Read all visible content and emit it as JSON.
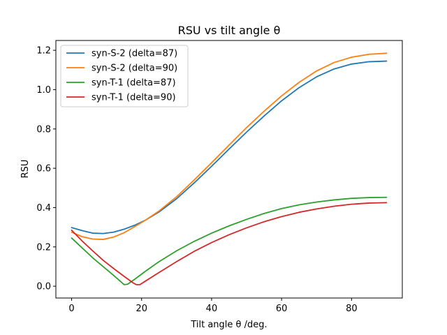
{
  "chart_data": {
    "type": "line",
    "title": "RSU vs tilt angle θ",
    "xlabel": "Tilt angle θ /deg.",
    "ylabel": "RSU",
    "xlim": [
      -4.5,
      94.5
    ],
    "ylim": [
      -0.06,
      1.25
    ],
    "xticks": [
      0,
      20,
      40,
      60,
      80
    ],
    "yticks": [
      0.0,
      0.2,
      0.4,
      0.6,
      0.8,
      1.0,
      1.2
    ],
    "grid": false,
    "legend_position": "top-left",
    "series": [
      {
        "name": "syn-S-2 (delta=87)",
        "color": "#1f77b4",
        "x": [
          0,
          3,
          6,
          9,
          12,
          15,
          18,
          21,
          25,
          30,
          35,
          40,
          45,
          50,
          55,
          60,
          65,
          70,
          75,
          80,
          85,
          90
        ],
        "y": [
          0.298,
          0.283,
          0.27,
          0.268,
          0.275,
          0.29,
          0.31,
          0.335,
          0.378,
          0.445,
          0.525,
          0.61,
          0.698,
          0.784,
          0.866,
          0.943,
          1.01,
          1.065,
          1.105,
          1.13,
          1.142,
          1.145
        ]
      },
      {
        "name": "syn-S-2 (delta=90)",
        "color": "#ff7f0e",
        "x": [
          0,
          3,
          6,
          9,
          12,
          15,
          18,
          21,
          25,
          30,
          35,
          40,
          45,
          50,
          55,
          60,
          65,
          70,
          75,
          80,
          85,
          90
        ],
        "y": [
          0.275,
          0.252,
          0.24,
          0.238,
          0.25,
          0.272,
          0.303,
          0.335,
          0.383,
          0.455,
          0.54,
          0.628,
          0.718,
          0.807,
          0.89,
          0.968,
          1.037,
          1.095,
          1.138,
          1.165,
          1.18,
          1.185
        ]
      },
      {
        "name": "syn-T-1 (delta=87)",
        "color": "#2ca02c",
        "x": [
          0,
          3,
          6,
          9,
          12,
          15,
          16,
          18,
          21,
          25,
          30,
          35,
          40,
          45,
          50,
          55,
          60,
          65,
          70,
          75,
          80,
          85,
          90
        ],
        "y": [
          0.245,
          0.195,
          0.145,
          0.1,
          0.055,
          0.008,
          0.01,
          0.035,
          0.075,
          0.125,
          0.18,
          0.228,
          0.27,
          0.307,
          0.34,
          0.37,
          0.395,
          0.414,
          0.428,
          0.439,
          0.447,
          0.451,
          0.452
        ]
      },
      {
        "name": "syn-T-1 (delta=90)",
        "color": "#d62728",
        "x": [
          0,
          3,
          6,
          9,
          12,
          15,
          17.5,
          18.5,
          19.5,
          21,
          25,
          30,
          35,
          40,
          45,
          50,
          55,
          60,
          65,
          70,
          75,
          80,
          85,
          90
        ],
        "y": [
          0.285,
          0.23,
          0.18,
          0.132,
          0.09,
          0.05,
          0.018,
          0.008,
          0.008,
          0.025,
          0.07,
          0.125,
          0.177,
          0.222,
          0.262,
          0.297,
          0.328,
          0.354,
          0.376,
          0.393,
          0.407,
          0.417,
          0.423,
          0.425
        ]
      }
    ]
  }
}
